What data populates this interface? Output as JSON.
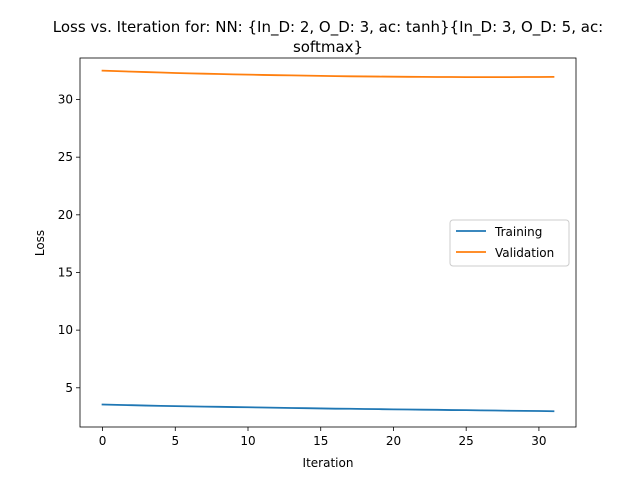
{
  "chart_data": {
    "type": "line",
    "title_lines": [
      "Loss vs. Iteration for: NN: {In_D: 2, O_D: 3, ac: tanh}{In_D: 3, O_D: 5, ac:",
      "softmax}"
    ],
    "xlabel": "Iteration",
    "ylabel": "Loss",
    "xlim": [
      -1.55,
      32.55
    ],
    "ylim": [
      1.6,
      33.6
    ],
    "xticks": [
      0,
      5,
      10,
      15,
      20,
      25,
      30
    ],
    "yticks": [
      5,
      10,
      15,
      20,
      25,
      30
    ],
    "grid": false,
    "legend_position": "center right",
    "x": [
      0,
      1,
      2,
      3,
      4,
      5,
      6,
      7,
      8,
      9,
      10,
      11,
      12,
      13,
      14,
      15,
      16,
      17,
      18,
      19,
      20,
      21,
      22,
      23,
      24,
      25,
      26,
      27,
      28,
      29,
      30,
      31
    ],
    "series": [
      {
        "name": "Training",
        "color": "#1f77b4",
        "values": [
          3.55,
          3.52,
          3.49,
          3.46,
          3.43,
          3.41,
          3.39,
          3.37,
          3.35,
          3.33,
          3.31,
          3.29,
          3.27,
          3.25,
          3.23,
          3.21,
          3.19,
          3.18,
          3.16,
          3.15,
          3.13,
          3.12,
          3.1,
          3.09,
          3.07,
          3.06,
          3.04,
          3.03,
          3.01,
          3.0,
          2.99,
          2.97
        ]
      },
      {
        "name": "Validation",
        "color": "#ff7f0e",
        "values": [
          32.5,
          32.46,
          32.42,
          32.38,
          32.34,
          32.3,
          32.27,
          32.24,
          32.21,
          32.18,
          32.16,
          32.13,
          32.11,
          32.09,
          32.07,
          32.05,
          32.03,
          32.01,
          32.0,
          31.99,
          31.98,
          31.97,
          31.96,
          31.95,
          31.95,
          31.94,
          31.94,
          31.94,
          31.94,
          31.95,
          31.95,
          31.96
        ]
      }
    ]
  }
}
